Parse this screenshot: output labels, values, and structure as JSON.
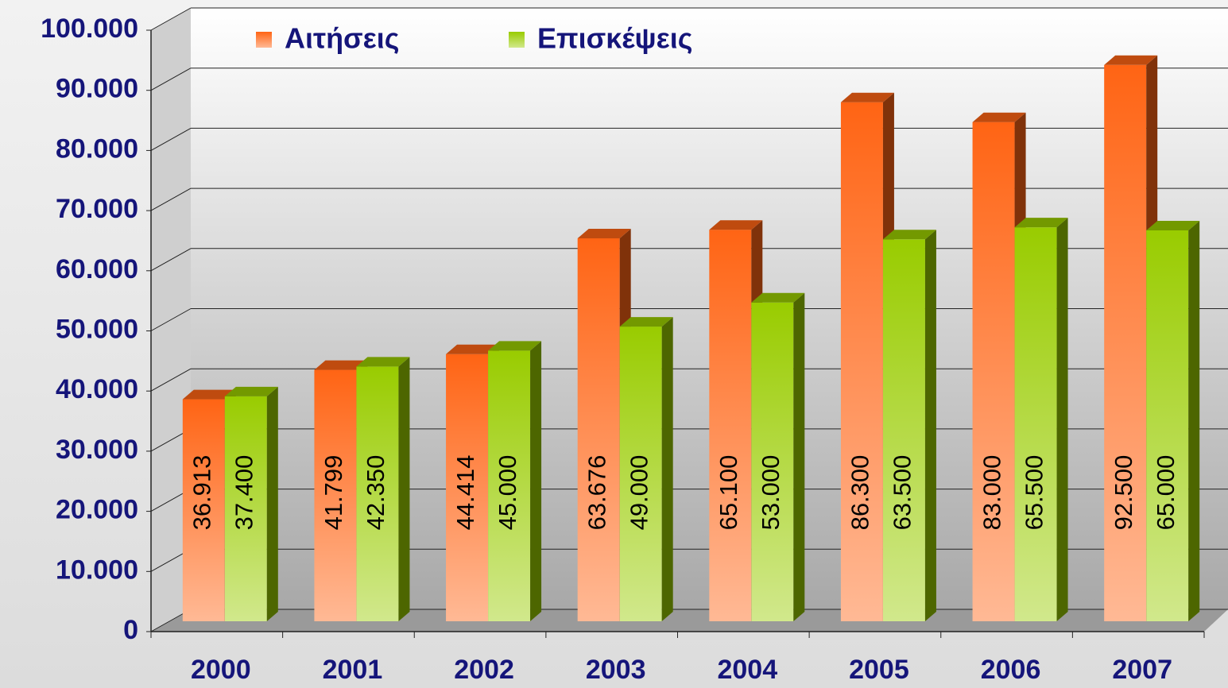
{
  "chart_data": {
    "type": "bar3d",
    "categories": [
      "2000",
      "2001",
      "2002",
      "2003",
      "2004",
      "2005",
      "2006",
      "2007"
    ],
    "series": [
      {
        "name": "Αιτήσεις",
        "color": "#ff6414",
        "values": [
          36913,
          41799,
          44414,
          63676,
          65100,
          86300,
          83000,
          92500
        ],
        "value_labels": [
          "36.913",
          "41.799",
          "44.414",
          "63.676",
          "65.100",
          "86.300",
          "83.000",
          "92.500"
        ]
      },
      {
        "name": "Επισκέψεις",
        "color": "#99cc00",
        "values": [
          37400,
          42350,
          45000,
          49000,
          53000,
          63500,
          65500,
          65000
        ],
        "value_labels": [
          "37.400",
          "42.350",
          "45.000",
          "49.000",
          "53.000",
          "63.500",
          "65.500",
          "65.000"
        ]
      }
    ],
    "ylim": [
      0,
      100000
    ],
    "yticks": [
      0,
      {
        "value": 10000,
        "label": "10.000"
      },
      {
        "value": 20000,
        "label": "20.000"
      },
      {
        "value": 30000,
        "label": "30.000"
      },
      {
        "value": 40000,
        "label": "40.000"
      },
      {
        "value": 50000,
        "label": "50.000"
      },
      {
        "value": 60000,
        "label": "60.000"
      },
      {
        "value": 70000,
        "label": "70.000"
      },
      {
        "value": 80000,
        "label": "80.000"
      },
      {
        "value": 90000,
        "label": "90.000"
      },
      {
        "value": 100000,
        "label": "100.000"
      }
    ],
    "grid": true,
    "legend": "top"
  }
}
